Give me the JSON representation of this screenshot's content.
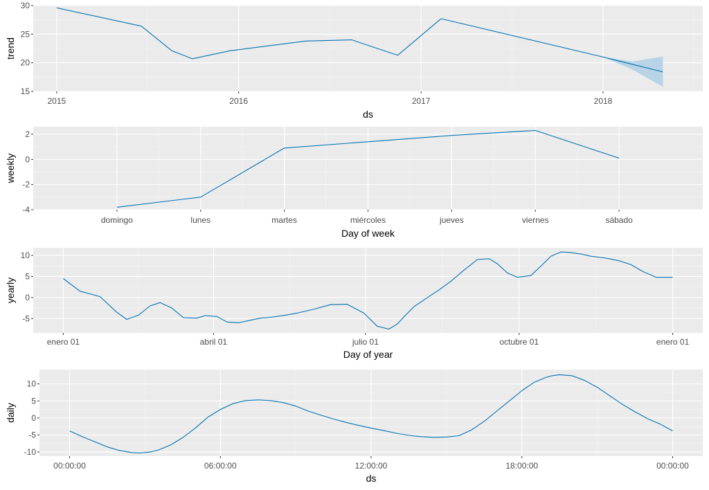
{
  "chart_data": [
    {
      "type": "line",
      "xlabel": "ds",
      "ylabel": "trend",
      "x_ticks": [
        "2015",
        "2016",
        "2017",
        "2018"
      ],
      "y_ticks": [
        15,
        20,
        25,
        30
      ],
      "ylim": [
        15,
        30
      ],
      "xlim": [
        "2014-11-15",
        "2018-07-20"
      ],
      "series": [
        {
          "x": [
            "2015-01-01",
            "2015-06-20",
            "2015-08-20",
            "2015-09-30",
            "2015-12-15",
            "2016-05-15",
            "2016-08-15",
            "2016-11-15",
            "2017-02-10",
            "2018-01-01",
            "2018-05-01"
          ],
          "values": [
            29.6,
            26.4,
            22.1,
            20.7,
            22.1,
            23.8,
            24.0,
            21.3,
            27.7,
            21.0,
            18.4
          ]
        }
      ],
      "uncertainty_band": {
        "x": [
          "2018-01-01",
          "2018-03-01",
          "2018-05-01"
        ],
        "lower": [
          21.0,
          18.8,
          15.8
        ],
        "upper": [
          21.0,
          20.2,
          21.1
        ]
      },
      "color": "#0072B2",
      "band_color": "#a6cbe3",
      "grid": true
    },
    {
      "type": "line",
      "xlabel": "Day of week",
      "ylabel": "weekly",
      "categories": [
        "domingo",
        "lunes",
        "martes",
        "miércoles",
        "jueves",
        "viernes",
        "sábado"
      ],
      "values": [
        -3.8,
        -3.0,
        0.9,
        1.4,
        1.9,
        2.3,
        0.1
      ],
      "y_ticks": [
        -4,
        -2,
        0,
        2
      ],
      "ylim": [
        -4.0,
        2.6
      ],
      "color": "#0072B2",
      "grid": true
    },
    {
      "type": "line",
      "xlabel": "Day of year",
      "ylabel": "yearly",
      "x_ticks": [
        "enero 01",
        "abril 01",
        "julio 01",
        "octubre 01",
        "enero 01"
      ],
      "x_tick_values": [
        0,
        90,
        181,
        273,
        365
      ],
      "xlim": [
        -18,
        383
      ],
      "y_ticks": [
        -5,
        0,
        5,
        10
      ],
      "ylim": [
        -8.4,
        11.8
      ],
      "color": "#0072B2",
      "grid": true,
      "x": [
        0,
        10,
        22,
        32,
        38,
        45,
        52,
        58,
        65,
        72,
        80,
        85,
        92,
        98,
        105,
        112,
        118,
        124,
        133,
        140,
        150,
        160,
        170,
        180,
        188,
        195,
        200,
        205,
        210,
        217,
        225,
        232,
        240,
        248,
        255,
        260,
        266,
        272,
        280,
        287,
        292,
        298,
        303,
        310,
        316,
        322,
        327,
        333,
        340,
        347,
        355,
        362,
        365
      ],
      "values": [
        4.5,
        1.5,
        0.2,
        -3.5,
        -5.2,
        -4.2,
        -2.0,
        -1.2,
        -2.5,
        -4.8,
        -4.9,
        -4.3,
        -4.5,
        -5.8,
        -6.0,
        -5.4,
        -4.9,
        -4.7,
        -4.2,
        -3.7,
        -2.8,
        -1.7,
        -1.6,
        -3.7,
        -6.8,
        -7.5,
        -6.3,
        -4.2,
        -2.2,
        -0.3,
        1.8,
        3.8,
        6.5,
        9.0,
        9.2,
        8.0,
        5.8,
        4.8,
        5.2,
        7.8,
        9.8,
        10.8,
        10.7,
        10.3,
        9.8,
        9.5,
        9.2,
        8.7,
        7.8,
        6.2,
        4.8,
        4.8,
        4.8
      ]
    },
    {
      "type": "line",
      "xlabel": "ds",
      "ylabel": "daily",
      "x_ticks": [
        "00:00:00",
        "06:00:00",
        "12:00:00",
        "18:00:00",
        "00:00:00"
      ],
      "x_tick_values": [
        0,
        6,
        12,
        18,
        24
      ],
      "xlim": [
        -1.2,
        25.2
      ],
      "y_ticks": [
        -10,
        -5,
        0,
        5,
        10
      ],
      "ylim": [
        -11.2,
        14.2
      ],
      "color": "#0072B2",
      "grid": true,
      "x": [
        0,
        0.5,
        1,
        1.5,
        2,
        2.5,
        2.8,
        3.2,
        3.5,
        4,
        4.5,
        5,
        5.5,
        6,
        6.5,
        7,
        7.5,
        8,
        8.5,
        9,
        9.5,
        10,
        10.5,
        11,
        11.5,
        12,
        12.5,
        13,
        13.5,
        14,
        14.5,
        15,
        15.5,
        16,
        16.5,
        17,
        17.5,
        18,
        18.5,
        19,
        19.2,
        19.5,
        20,
        20.5,
        21,
        21.5,
        22,
        22.5,
        23,
        23.5,
        24
      ],
      "values": [
        -3.8,
        -5.5,
        -7.0,
        -8.5,
        -9.6,
        -10.2,
        -10.3,
        -10.0,
        -9.5,
        -8.0,
        -5.8,
        -3.0,
        0.2,
        2.5,
        4.2,
        5.1,
        5.3,
        5.1,
        4.5,
        3.5,
        2.0,
        0.8,
        -0.3,
        -1.3,
        -2.2,
        -3.0,
        -3.7,
        -4.5,
        -5.1,
        -5.5,
        -5.7,
        -5.6,
        -5.2,
        -3.5,
        -1.0,
        2.0,
        5.0,
        8.0,
        10.5,
        12.0,
        12.4,
        12.7,
        12.4,
        11.0,
        9.0,
        6.5,
        4.0,
        1.8,
        -0.2,
        -1.8,
        -3.8
      ]
    }
  ]
}
